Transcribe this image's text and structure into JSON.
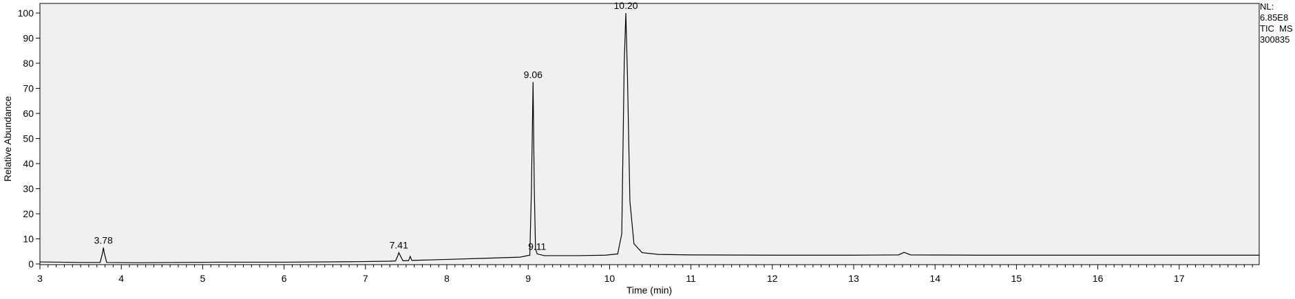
{
  "chart_data": {
    "type": "line",
    "title": "",
    "xlabel": "Time (min)",
    "ylabel": "Relative Abundance",
    "xlim": [
      3,
      18
    ],
    "ylim": [
      0,
      100
    ],
    "xticks": [
      3,
      4,
      5,
      6,
      7,
      8,
      9,
      10,
      11,
      12,
      13,
      14,
      15,
      16,
      17
    ],
    "yticks": [
      0,
      10,
      20,
      30,
      40,
      50,
      60,
      70,
      80,
      90,
      100
    ],
    "grid": false,
    "plot_background": "#f0f0f0",
    "line_color": "#000000",
    "peak_labels": [
      {
        "text": "3.78",
        "x": 3.78,
        "y": 6.5
      },
      {
        "text": "7.41",
        "x": 7.41,
        "y": 4.5
      },
      {
        "text": "9.06",
        "x": 9.06,
        "y": 72.5
      },
      {
        "text": "9.11",
        "x": 9.11,
        "y": 4.0
      },
      {
        "text": "10.20",
        "x": 10.2,
        "y": 100
      }
    ],
    "info_lines": [
      "NL:",
      "6.85E8",
      "TIC  MS",
      "300835"
    ],
    "series": [
      {
        "points": [
          [
            3.0,
            0.8
          ],
          [
            3.5,
            0.6
          ],
          [
            3.74,
            0.6
          ],
          [
            3.77,
            4.5
          ],
          [
            3.78,
            6.5
          ],
          [
            3.79,
            4.5
          ],
          [
            3.82,
            0.6
          ],
          [
            4.2,
            0.5
          ],
          [
            4.7,
            0.6
          ],
          [
            5.2,
            0.7
          ],
          [
            6.0,
            0.7
          ],
          [
            6.9,
            0.9
          ],
          [
            7.3,
            1.1
          ],
          [
            7.37,
            1.2
          ],
          [
            7.4,
            3.5
          ],
          [
            7.41,
            4.5
          ],
          [
            7.43,
            3.2
          ],
          [
            7.46,
            1.3
          ],
          [
            7.53,
            1.3
          ],
          [
            7.55,
            3.0
          ],
          [
            7.57,
            1.4
          ],
          [
            8.0,
            1.8
          ],
          [
            8.5,
            2.3
          ],
          [
            8.9,
            2.7
          ],
          [
            9.02,
            3.5
          ],
          [
            9.04,
            30.0
          ],
          [
            9.06,
            72.5
          ],
          [
            9.075,
            30.0
          ],
          [
            9.09,
            6.0
          ],
          [
            9.11,
            4.0
          ],
          [
            9.2,
            3.3
          ],
          [
            9.6,
            3.3
          ],
          [
            9.95,
            3.5
          ],
          [
            10.1,
            4.0
          ],
          [
            10.15,
            12.0
          ],
          [
            10.18,
            80.0
          ],
          [
            10.2,
            100
          ],
          [
            10.22,
            75.0
          ],
          [
            10.25,
            25.0
          ],
          [
            10.3,
            8.0
          ],
          [
            10.4,
            4.5
          ],
          [
            10.6,
            3.8
          ],
          [
            11.0,
            3.6
          ],
          [
            12.0,
            3.5
          ],
          [
            13.0,
            3.5
          ],
          [
            13.55,
            3.6
          ],
          [
            13.62,
            4.6
          ],
          [
            13.7,
            3.6
          ],
          [
            14.5,
            3.5
          ],
          [
            15.5,
            3.5
          ],
          [
            16.5,
            3.5
          ],
          [
            17.5,
            3.5
          ],
          [
            18.0,
            3.5
          ]
        ]
      }
    ]
  }
}
